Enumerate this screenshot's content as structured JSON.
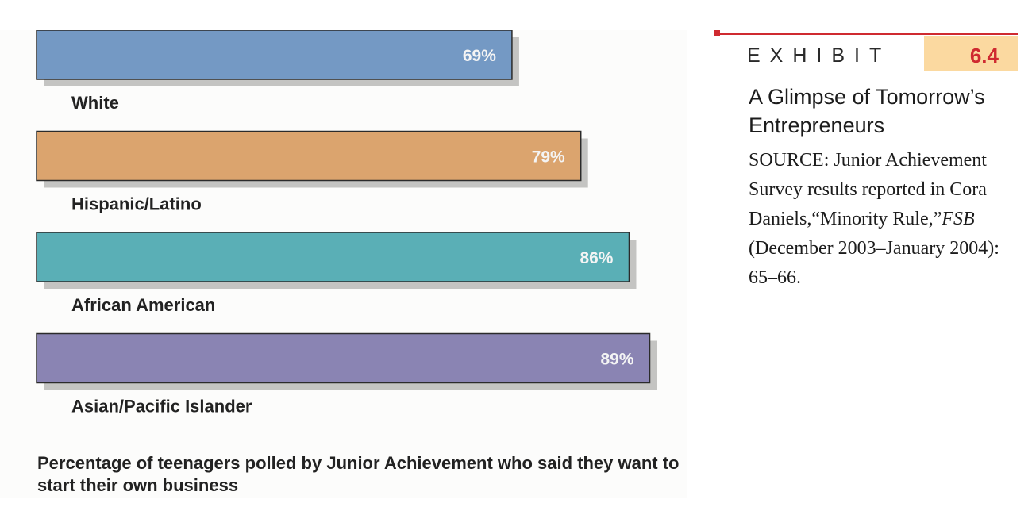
{
  "chart_data": {
    "type": "bar",
    "orientation": "horizontal",
    "categories": [
      "White",
      "Hispanic/Latino",
      "African American",
      "Asian/Pacific Islander"
    ],
    "values": [
      69,
      79,
      86,
      89
    ],
    "value_labels": [
      "69%",
      "79%",
      "86%",
      "89%"
    ],
    "colors": [
      "#7499c4",
      "#dba46e",
      "#5aafb6",
      "#8a84b3"
    ],
    "caption": "Percentage of teenagers polled by Junior Achievement who said they want to start their own business",
    "xlim": [
      0,
      100
    ],
    "grid": false,
    "legend": false
  },
  "exhibit": {
    "label": "EXHIBIT",
    "number": "6.4",
    "title": "A Glimpse of Tomorrow’s Entrepreneurs",
    "source_part1": "SOURCE: Junior Achievement Survey results reported in Cora Daniels,“Minority Rule,”",
    "source_italic": "FSB",
    "source_part2": " (December 2003–January 2004): 65–66.",
    "accent_color": "#cf2a30",
    "number_box_color": "#fbd9a0"
  }
}
